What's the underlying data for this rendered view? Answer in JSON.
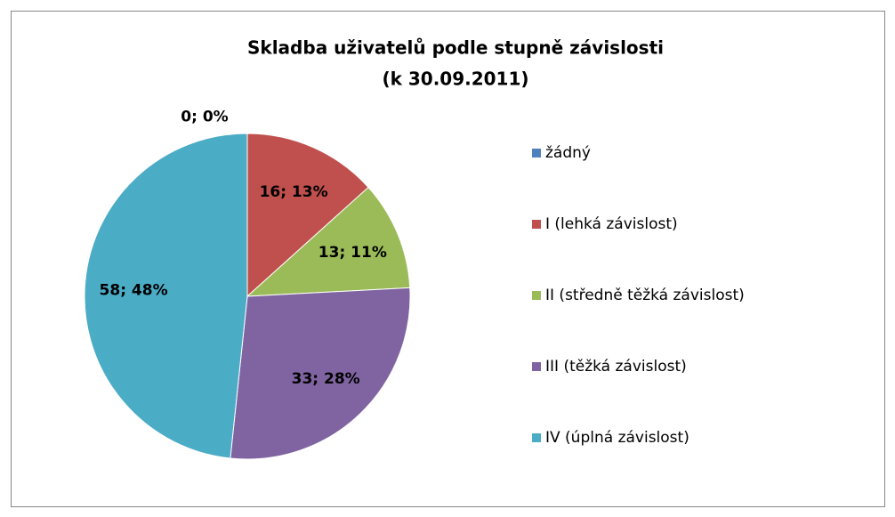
{
  "chart_data": {
    "type": "pie",
    "title": [
      "Skladba uživatelů podle stupně závislosti",
      "(k 30.09.2011)"
    ],
    "categories": [
      "žádný",
      "I (lehká závislost)",
      "II (středně těžká závislost)",
      "III (těžká závislost)",
      "IV (úplná závislost)"
    ],
    "values": [
      0,
      16,
      13,
      33,
      58
    ],
    "value_labels": [
      "0; 0%",
      "16; 13%",
      "13; 11%",
      "33; 28%",
      "58; 48%"
    ],
    "colors": [
      "#4f81bd",
      "#c0504d",
      "#9bbb59",
      "#8064a2",
      "#4bacc6"
    ],
    "legend": "right"
  }
}
